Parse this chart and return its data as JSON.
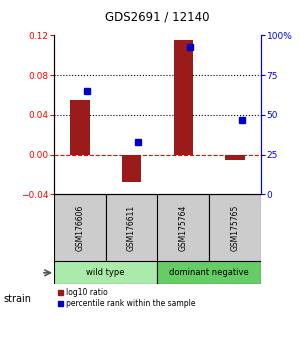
{
  "title": "GDS2691 / 12140",
  "samples": [
    "GSM176606",
    "GSM176611",
    "GSM175764",
    "GSM175765"
  ],
  "log10_ratio": [
    0.055,
    -0.028,
    0.115,
    -0.005
  ],
  "percentile_rank": [
    65,
    33,
    93,
    47
  ],
  "groups": [
    {
      "label": "wild type",
      "span": [
        0,
        2
      ],
      "color": "#aaeaaa"
    },
    {
      "label": "dominant negative",
      "span": [
        2,
        4
      ],
      "color": "#66cc66"
    }
  ],
  "bar_color": "#9b1a1a",
  "dot_color": "#0000cc",
  "ylim_left": [
    -0.04,
    0.12
  ],
  "ylim_right": [
    0,
    100
  ],
  "yticks_left": [
    -0.04,
    0,
    0.04,
    0.08,
    0.12
  ],
  "yticks_right": [
    0,
    25,
    50,
    75,
    100
  ],
  "dotted_hlines": [
    0.04,
    0.08
  ],
  "zero_hline": 0.0,
  "legend_red_label": "log10 ratio",
  "legend_blue_label": "percentile rank within the sample",
  "strain_label": "strain",
  "sample_box_color": "#cccccc",
  "background_color": "#ffffff"
}
